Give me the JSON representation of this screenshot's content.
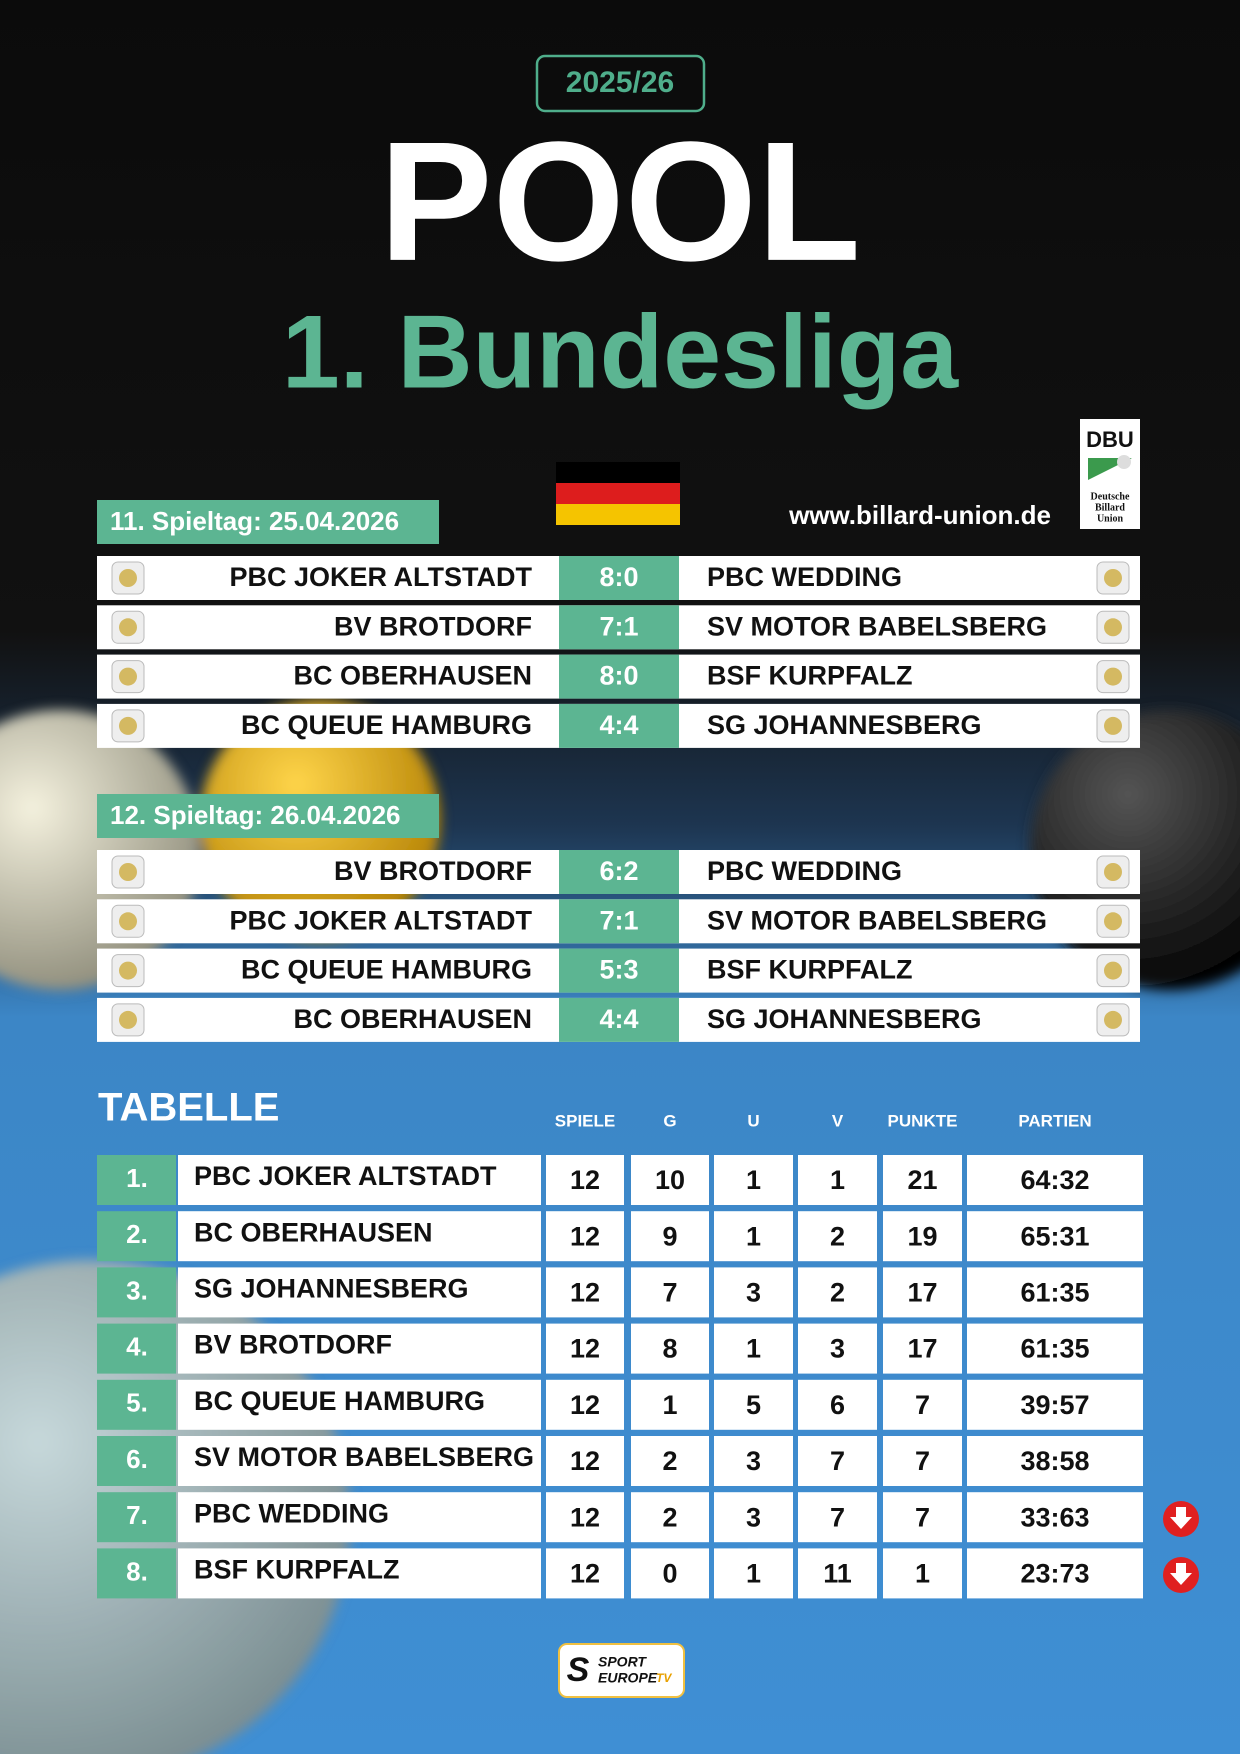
{
  "season": "2025/26",
  "title": "POOL",
  "subtitle": "1. Bundesliga",
  "website": "www.billard-union.de",
  "dbu_logo": {
    "abbr": "DBU",
    "name": [
      "Deutsche",
      "Billard",
      "Union"
    ]
  },
  "matchdays": [
    {
      "label": "11. Spieltag: 25.04.2026",
      "matches": [
        {
          "home": "PBC JOKER ALTSTADT",
          "score": "8:0",
          "away": "PBC WEDDING"
        },
        {
          "home": "BV BROTDORF",
          "score": "7:1",
          "away": "SV MOTOR BABELSBERG"
        },
        {
          "home": "BC OBERHAUSEN",
          "score": "8:0",
          "away": "BSF KURPFALZ"
        },
        {
          "home": "BC QUEUE HAMBURG",
          "score": "4:4",
          "away": "SG JOHANNESBERG"
        }
      ]
    },
    {
      "label": "12. Spieltag: 26.04.2026",
      "matches": [
        {
          "home": "BV BROTDORF",
          "score": "6:2",
          "away": "PBC WEDDING"
        },
        {
          "home": "PBC JOKER ALTSTADT",
          "score": "7:1",
          "away": "SV MOTOR BABELSBERG"
        },
        {
          "home": "BC QUEUE HAMBURG",
          "score": "5:3",
          "away": "BSF KURPFALZ"
        },
        {
          "home": "BC OBERHAUSEN",
          "score": "4:4",
          "away": "SG JOHANNESBERG"
        }
      ]
    }
  ],
  "table": {
    "title": "TABELLE",
    "columns": [
      "SPIELE",
      "G",
      "U",
      "V",
      "PUNKTE",
      "PARTIEN"
    ],
    "rows": [
      [
        "1.",
        "PBC JOKER ALTSTADT",
        12,
        10,
        1,
        1,
        21,
        "64:32"
      ],
      [
        "2.",
        "BC OBERHAUSEN",
        12,
        9,
        1,
        2,
        19,
        "65:31"
      ],
      [
        "3.",
        "SG JOHANNESBERG",
        12,
        7,
        3,
        2,
        17,
        "61:35"
      ],
      [
        "4.",
        "BV BROTDORF",
        12,
        8,
        1,
        3,
        17,
        "61:35"
      ],
      [
        "5.",
        "BC QUEUE HAMBURG",
        12,
        1,
        5,
        6,
        7,
        "39:57"
      ],
      [
        "6.",
        "SV MOTOR BABELSBERG",
        12,
        2,
        3,
        7,
        7,
        "38:58"
      ],
      [
        "7.",
        "PBC WEDDING",
        12,
        2,
        3,
        7,
        7,
        "33:63"
      ],
      [
        "8.",
        "BSF KURPFALZ",
        12,
        0,
        1,
        11,
        1,
        "23:73"
      ]
    ]
  },
  "footer_logo": {
    "line1": "SPORT",
    "line2": "EUROPE",
    "line3": "TV"
  }
}
